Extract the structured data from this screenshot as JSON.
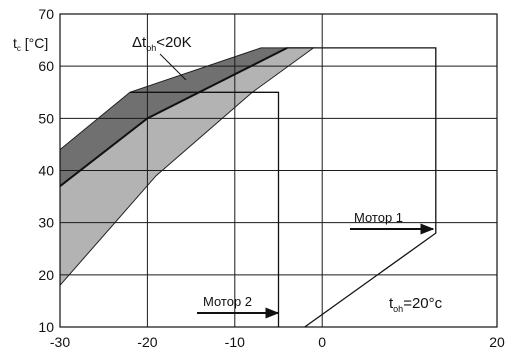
{
  "chart_data": {
    "type": "area",
    "xlim": [
      -30,
      20
    ],
    "ylim": [
      10,
      70
    ],
    "x_ticks": [
      -30,
      -20,
      -10,
      0,
      20
    ],
    "y_ticks": [
      10,
      20,
      30,
      40,
      50,
      60,
      70
    ],
    "grid": true,
    "ylabel": "tc [°C]",
    "dark_region": [
      [
        -30,
        44
      ],
      [
        -22,
        55
      ],
      [
        -7,
        63.5
      ],
      [
        -4,
        63.5
      ],
      [
        -20,
        50
      ],
      [
        -30,
        37
      ]
    ],
    "light_region": [
      [
        -30,
        37
      ],
      [
        -20,
        50
      ],
      [
        -4,
        63.5
      ],
      [
        -1,
        63.5
      ],
      [
        -8,
        55
      ],
      [
        -19,
        39
      ],
      [
        -30,
        18
      ]
    ],
    "divider_line": [
      [
        -30,
        37
      ],
      [
        -20,
        50
      ],
      [
        -4,
        63.5
      ]
    ],
    "motor1_outline": [
      [
        -4,
        63.5
      ],
      [
        13,
        63.5
      ],
      [
        13,
        28
      ],
      [
        -2,
        10
      ]
    ],
    "motor2_outline": [
      [
        -22,
        55
      ],
      [
        -5,
        55
      ],
      [
        -5,
        10
      ]
    ],
    "annotations": {
      "region_label": "Δtoh<20K",
      "motor1": "Мотор 1",
      "motor2": "Мотор 2",
      "toh": "toh=20°c"
    },
    "colors": {
      "dark": "#707070",
      "light": "#b3b3b3"
    }
  }
}
